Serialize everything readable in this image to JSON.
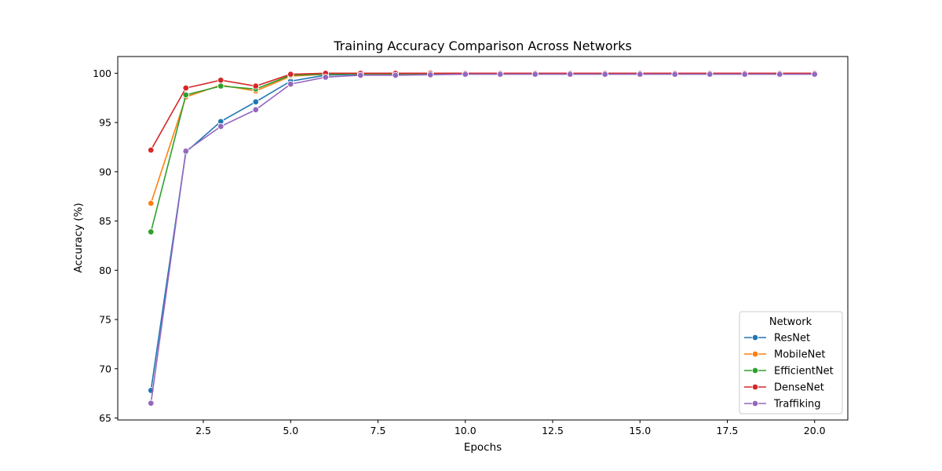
{
  "chart_data": {
    "type": "line",
    "title": "Training Accuracy Comparison Across Networks",
    "xlabel": "Epochs",
    "ylabel": "Accuracy (%)",
    "xlim": [
      0.05,
      20.95
    ],
    "ylim": [
      64.8,
      101.7
    ],
    "xticks": [
      2.5,
      5.0,
      7.5,
      10.0,
      12.5,
      15.0,
      17.5,
      20.0
    ],
    "xtick_labels": [
      "2.5",
      "5.0",
      "7.5",
      "10.0",
      "12.5",
      "15.0",
      "17.5",
      "20.0"
    ],
    "yticks": [
      65,
      70,
      75,
      80,
      85,
      90,
      95,
      100
    ],
    "ytick_labels": [
      "65",
      "70",
      "75",
      "80",
      "85",
      "90",
      "95",
      "100"
    ],
    "grid": false,
    "legend": {
      "title": "Network",
      "placement": "lower-right"
    },
    "x": [
      1,
      2,
      3,
      4,
      5,
      6,
      7,
      8,
      9,
      10,
      11,
      12,
      13,
      14,
      15,
      16,
      17,
      18,
      19,
      20
    ],
    "series": [
      {
        "name": "ResNet",
        "color": "#1f77b4",
        "values": [
          67.8,
          92.0,
          95.1,
          97.1,
          99.2,
          99.8,
          99.9,
          99.9,
          99.95,
          99.95,
          99.95,
          99.95,
          99.95,
          99.95,
          99.95,
          99.95,
          99.95,
          99.95,
          99.95,
          99.95
        ]
      },
      {
        "name": "MobileNet",
        "color": "#ff7f0e",
        "values": [
          86.8,
          97.6,
          98.8,
          98.2,
          99.7,
          99.9,
          99.95,
          99.95,
          99.95,
          99.95,
          99.95,
          99.95,
          99.95,
          99.95,
          99.95,
          99.95,
          99.95,
          99.95,
          99.95,
          99.95
        ]
      },
      {
        "name": "EfficientNet",
        "color": "#2ca02c",
        "values": [
          83.9,
          97.8,
          98.7,
          98.4,
          99.8,
          99.9,
          99.95,
          99.95,
          99.95,
          99.95,
          99.95,
          99.95,
          99.95,
          99.95,
          99.95,
          99.95,
          99.95,
          99.95,
          99.95,
          99.95
        ]
      },
      {
        "name": "DenseNet",
        "color": "#d62728",
        "values": [
          92.2,
          98.5,
          99.3,
          98.7,
          99.9,
          100.0,
          100.0,
          100.0,
          100.0,
          100.0,
          100.0,
          100.0,
          100.0,
          100.0,
          100.0,
          100.0,
          100.0,
          100.0,
          100.0,
          100.0
        ]
      },
      {
        "name": "Traffiking",
        "color": "#9467bd",
        "values": [
          66.5,
          92.1,
          94.6,
          96.3,
          98.9,
          99.6,
          99.8,
          99.8,
          99.85,
          99.9,
          99.9,
          99.9,
          99.9,
          99.9,
          99.9,
          99.9,
          99.9,
          99.9,
          99.9,
          99.9
        ]
      }
    ]
  }
}
